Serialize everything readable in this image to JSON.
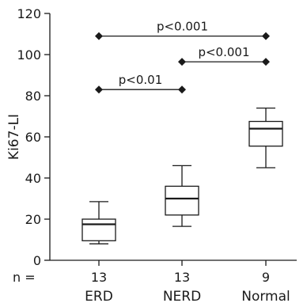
{
  "chart_data": {
    "type": "box",
    "title": "",
    "xlabel": "",
    "ylabel": "Ki67-LI",
    "ylim": [
      0,
      120
    ],
    "yticks": [
      0,
      20,
      40,
      60,
      80,
      100,
      120
    ],
    "categories": [
      "ERD",
      "NERD",
      "Normal"
    ],
    "n_prefix": "n =",
    "n": [
      "13",
      "13",
      "9"
    ],
    "boxes": [
      {
        "category": "ERD",
        "min": 8,
        "q1": 9.5,
        "median": 17.5,
        "q3": 20,
        "max": 28.5
      },
      {
        "category": "NERD",
        "min": 16.5,
        "q1": 22,
        "median": 30,
        "q3": 36,
        "max": 46
      },
      {
        "category": "Normal",
        "min": 45,
        "q1": 55.5,
        "median": 64,
        "q3": 67.5,
        "max": 74
      }
    ],
    "comparisons": [
      {
        "from": "ERD",
        "to": "Normal",
        "y": 109,
        "label": "p<0.001"
      },
      {
        "from": "NERD",
        "to": "Normal",
        "y": 96.5,
        "label": "p<0.001"
      },
      {
        "from": "ERD",
        "to": "NERD",
        "y": 83,
        "label": "p<0.01"
      }
    ]
  }
}
